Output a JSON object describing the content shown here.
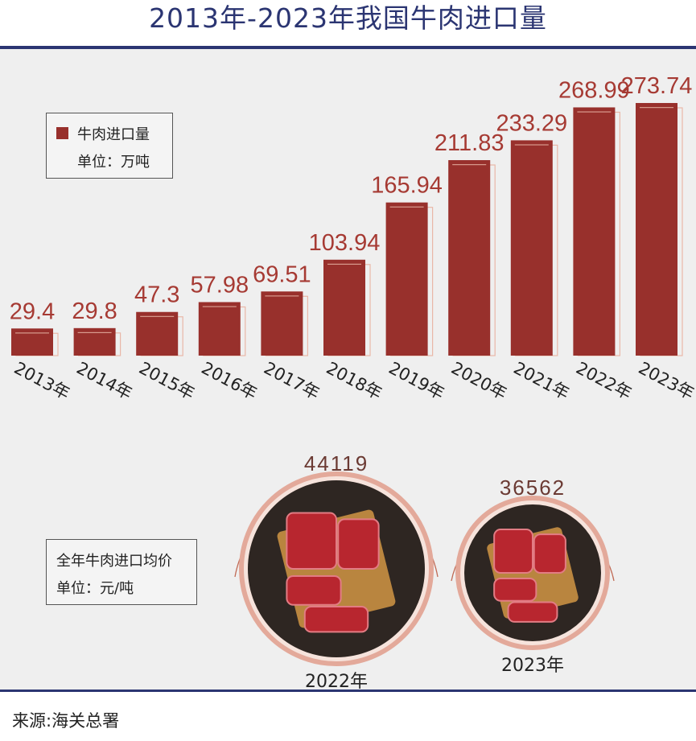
{
  "title": "2013年-2023年我国牛肉进口量",
  "source": "来源:海关总署",
  "legend": {
    "series_name": "牛肉进口量",
    "unit": "单位：万吨"
  },
  "price_section": {
    "label": "全年牛肉进口均价",
    "unit": "单位：元/吨",
    "items": [
      {
        "year": "2022年",
        "value": "44119"
      },
      {
        "year": "2023年",
        "value": "36562"
      }
    ]
  },
  "colors": {
    "bar": "#98302c",
    "title": "#2b3572",
    "label": "#a63a33",
    "ring": "#e3a99a"
  },
  "chart_data": {
    "type": "bar",
    "categories": [
      "2013年",
      "2014年",
      "2015年",
      "2016年",
      "2017年",
      "2018年",
      "2019年",
      "2020年",
      "2021年",
      "2022年",
      "2023年"
    ],
    "series": [
      {
        "name": "牛肉进口量",
        "values": [
          29.4,
          29.8,
          47.3,
          57.98,
          69.51,
          103.94,
          165.94,
          211.83,
          233.29,
          268.99,
          273.74
        ]
      }
    ],
    "value_labels": [
      "29.4",
      "29.8",
      "47.3",
      "57.98",
      "69.51",
      "103.94",
      "165.94",
      "211.83",
      "233.29",
      "268.99",
      "273.74"
    ],
    "ylabel": "单位：万吨",
    "ylim": [
      0,
      280
    ],
    "legend": "top-left",
    "grid": false
  }
}
